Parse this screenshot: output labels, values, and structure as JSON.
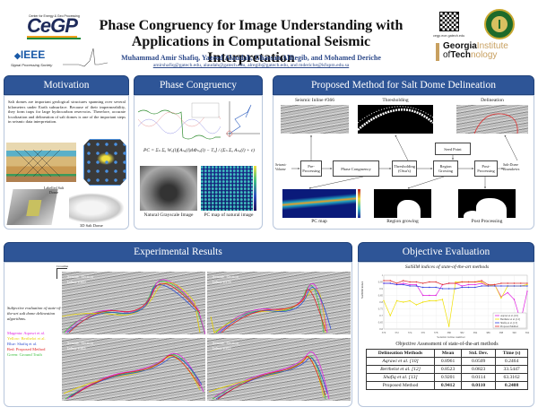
{
  "header": {
    "title_line1": "Phase Congruency for Image Understanding with",
    "title_line2": "Applications in Computational Seismic Interpretation",
    "authors": "Muhammad Amir Shafiq, Yazeed Alaudah, Ghassan AlRegib, and Mohamed Deriche",
    "emails": "amirshafiq@gatech.edu, alaudah@gatech.edu, alregib@gatech.edu, and mderiche@kfupm.edu.sa",
    "left_logos": {
      "cegp_tagline": "Center for Energy & Geo Processing",
      "cegp": "CeGP",
      "ieee": "IEEE",
      "sps": "Signal Processing Society"
    },
    "right_logos": {
      "qr_caption": "cegp.ece.gatech.edu",
      "gt_line1_bold": "Georgia",
      "gt_line1_rest": "Institute",
      "gt_line2_prefix": "of",
      "gt_line2_bold": "Tech",
      "gt_line2_rest": "nology"
    }
  },
  "sections": {
    "motivation": {
      "heading": "Motivation",
      "text": "Salt domes are important geological structures spanning over several kilometers under Earth subsurface. Because of their impermeability, they form traps for large hydrocarbon reservoirs. Therefore, accurate localization and delineation of salt domes is one of the important steps in seismic data interpretation.",
      "labels": {
        "labelled": "Labelled Salt Dome",
        "dome3d": "3D Salt Dome"
      }
    },
    "phase_congruency": {
      "heading": "Phase Congruency",
      "formula": "PC = Σₙ Σₒ Wₒ(l)⌊Aₙₒ(l)ΔΦₙₒ(l) − Tₒ⌋ / (Σₙ Σₒ Aₙₒ(l) + ε)",
      "captions": {
        "gray": "Natural Grayscale Image",
        "pcmap": "PC map of natural image"
      }
    },
    "proposed": {
      "heading": "Proposed Method for Salt Dome Delineation",
      "top_labels": {
        "seismic": "Seismic Inline #366",
        "thresh": "Thresholding",
        "delin": "Delineation"
      },
      "blocks": {
        "input": "Seismic Volume",
        "pre": "Pre-Processing",
        "pc": "Phase Congruency",
        "thresh": "Thresholding (Otsu's)",
        "region": "Region Growing",
        "post": "Post-Processing",
        "seed": "Seed Point",
        "output": "Salt-Dome Boundaries"
      },
      "symbols": {
        "v": "V",
        "vp": "Vₚ",
        "pc": "PC",
        "b": "B",
        "s": "S",
        "ps": "Pₛ"
      },
      "bottom_labels": {
        "pcmap": "PC map",
        "region": "Region growing",
        "post": "Post Processing"
      }
    },
    "experimental": {
      "heading": "Experimental Results",
      "axes": {
        "crossline": "Crossline",
        "time": "Time"
      },
      "desc": "Subjective evaluation of state-of-the-art salt dome delineation algorithms.",
      "legend": [
        {
          "text": "Magenta: Aqrawi et al.",
          "color": "#e020e0"
        },
        {
          "text": "Yellow: Berthelot et al.",
          "color": "#e6d000"
        },
        {
          "text": "Blue: Shafiq et al.",
          "color": "#3050d0"
        },
        {
          "text": "Red: Proposed Method",
          "color": "#e02020"
        },
        {
          "text": "Green: Ground Truth",
          "color": "#40c040"
        }
      ],
      "panels": [
        {
          "l1": "Seismic Section",
          "l2": "Inline #369"
        },
        {
          "l1": "Seismic Section",
          "l2": "Inline #378"
        },
        {
          "l1": "Seismic Section",
          "l2": "Inline #384"
        },
        {
          "l1": "Seismic Section",
          "l2": "Inline #392"
        }
      ]
    },
    "objective": {
      "heading": "Objective Evaluation",
      "table_caption": "Objective Assessment of state-of-the-art methods",
      "table": {
        "headers": [
          "Delineation Methods",
          "Mean",
          "Std. Dev.",
          "Time (s)"
        ],
        "rows": [
          [
            "Aqrawi et al. [10]",
            "0.8961",
            "0.0509",
            "0.2464"
          ],
          [
            "Berthelot et al. [12]",
            "0.8523",
            "0.0823",
            "33.5447"
          ],
          [
            "Shafiq et al. [13]",
            "0.9201",
            "0.0114",
            "63.3162"
          ],
          [
            "Proposed Method",
            "0.9412",
            "0.0110",
            "0.2408"
          ]
        ]
      }
    }
  },
  "chart_data": {
    "type": "line",
    "title": "SalSIM indices of state-of-the-art methods",
    "xlabel": "Seismic inline number",
    "ylabel": "SalSIM index",
    "ylim": [
      0.6,
      1.0
    ],
    "grid": true,
    "legend_position": "lower right",
    "x": [
      370,
      371,
      372,
      373,
      374,
      375,
      376,
      377,
      378,
      379,
      380,
      381,
      382,
      383,
      384,
      385,
      386,
      387,
      388,
      389,
      390,
      391,
      392
    ],
    "x_ticks": [
      370,
      372,
      374,
      376,
      378,
      380,
      382,
      384,
      386,
      388,
      390,
      392
    ],
    "series": [
      {
        "name": "Aqrawi et al. [10]",
        "color": "#e020e0",
        "values": [
          0.94,
          0.94,
          0.93,
          0.94,
          0.93,
          0.93,
          0.85,
          0.85,
          0.85,
          0.93,
          0.94,
          0.94,
          0.92,
          0.93,
          0.93,
          0.94,
          0.92,
          0.93,
          0.84,
          0.87,
          0.82,
          0.66,
          0.88
        ]
      },
      {
        "name": "Berthelot et al. [12]",
        "color": "#f0e000",
        "values": [
          0.81,
          0.7,
          0.81,
          0.8,
          0.81,
          0.78,
          0.8,
          0.81,
          0.81,
          0.82,
          0.62,
          0.95,
          0.95,
          0.95,
          0.95,
          0.95,
          0.92,
          0.93,
          0.83,
          0.92,
          0.92,
          0.92,
          0.93
        ]
      },
      {
        "name": "Shafiq et al. [13]",
        "color": "#3040e0",
        "values": [
          0.94,
          0.94,
          0.93,
          0.93,
          0.92,
          0.92,
          0.91,
          0.91,
          0.91,
          0.9,
          0.9,
          0.9,
          0.91,
          0.91,
          0.91,
          0.92,
          0.92,
          0.92,
          0.92,
          0.92,
          0.92,
          0.92,
          0.92
        ]
      },
      {
        "name": "Proposed Method",
        "color": "#e03030",
        "values": [
          0.96,
          0.96,
          0.94,
          0.96,
          0.95,
          0.95,
          0.94,
          0.95,
          0.95,
          0.93,
          0.94,
          0.94,
          0.95,
          0.95,
          0.95,
          0.96,
          0.93,
          0.93,
          0.94,
          0.94,
          0.94,
          0.94,
          0.94
        ]
      }
    ],
    "y_ticks": [
      1.0,
      0.95,
      0.9,
      0.85,
      0.8,
      0.75,
      0.7,
      0.65,
      0.6
    ]
  }
}
